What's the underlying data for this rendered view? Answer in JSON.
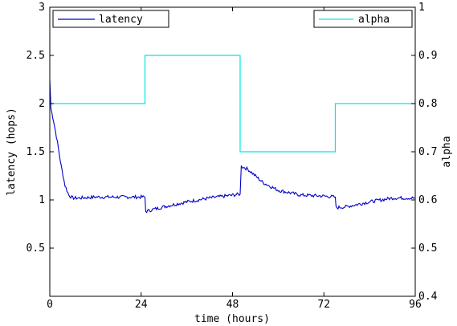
{
  "chart_data": {
    "type": "line",
    "xlabel": "time (hours)",
    "ylabel_left": "latency (hops)",
    "ylabel_right": "alpha",
    "xlim": [
      0,
      96
    ],
    "ylim_left": [
      0,
      3
    ],
    "ylim_right": [
      0.4,
      1
    ],
    "x_ticks": [
      0,
      24,
      48,
      72,
      96
    ],
    "y_left_ticks": [
      0.5,
      1,
      1.5,
      2,
      2.5,
      3
    ],
    "y_left_tick_labels": [
      "0.5",
      "1",
      "1.5",
      "2",
      "2.5",
      "3"
    ],
    "y_right_ticks": [
      0.4,
      0.5,
      0.6,
      0.7,
      0.8,
      0.9,
      1
    ],
    "y_right_tick_labels": [
      "0.4",
      "0.5",
      "0.6",
      "0.7",
      "0.8",
      "0.9",
      "1"
    ],
    "grid": false,
    "series": [
      {
        "name": "latency",
        "axis": "left",
        "color": "#0000cc",
        "x": [
          0,
          0.3,
          1,
          2,
          3,
          4,
          5,
          6,
          8,
          12,
          18,
          24,
          25,
          25.2,
          27,
          30,
          36,
          42,
          48,
          50,
          50.3,
          52,
          56,
          60,
          66,
          72,
          75,
          75.2,
          78,
          84,
          90,
          96
        ],
        "y": [
          2.25,
          1.95,
          1.82,
          1.6,
          1.35,
          1.15,
          1.05,
          1.02,
          1.02,
          1.03,
          1.03,
          1.03,
          1.03,
          0.88,
          0.9,
          0.93,
          0.98,
          1.02,
          1.05,
          1.06,
          1.35,
          1.32,
          1.18,
          1.1,
          1.05,
          1.04,
          1.03,
          0.92,
          0.93,
          0.98,
          1.02,
          1.02
        ]
      },
      {
        "name": "alpha",
        "axis": "right",
        "color": "#00e5e5",
        "step": true,
        "x": [
          0,
          25,
          25,
          50,
          50,
          75,
          75,
          96
        ],
        "y": [
          0.8,
          0.8,
          0.9,
          0.9,
          0.7,
          0.7,
          0.8,
          0.8
        ]
      }
    ],
    "legends": [
      {
        "name": "latency",
        "placement": "top-left"
      },
      {
        "name": "alpha",
        "placement": "top-right"
      }
    ]
  }
}
